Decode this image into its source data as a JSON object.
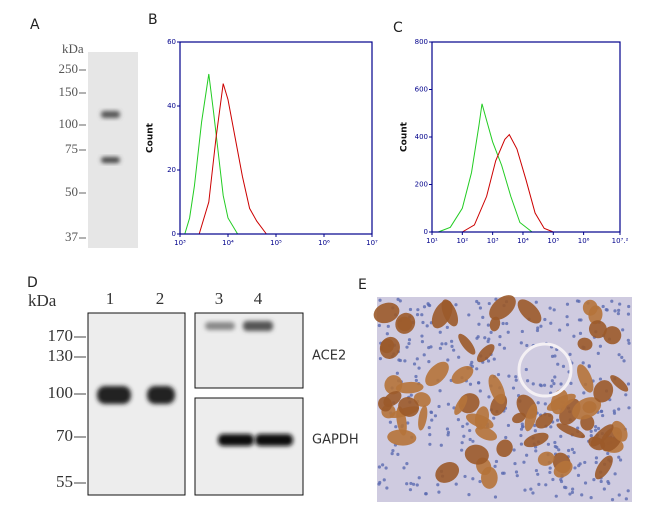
{
  "figure": {
    "a": {
      "label": "A",
      "unit": "kDa",
      "markers": [
        "250",
        "150",
        "100",
        "75",
        "50",
        "37"
      ]
    },
    "d": {
      "label": "D",
      "unit": "kDa",
      "lanes": [
        "1",
        "2",
        "3",
        "4"
      ],
      "markers": [
        "170",
        "130",
        "100",
        "70",
        "55"
      ],
      "blots": [
        "ACE2",
        "GAPDH"
      ]
    },
    "e": {
      "label": "E"
    }
  },
  "chart_data": [
    {
      "type": "line",
      "panel_label": "B",
      "y_label": "Count",
      "log_x": true,
      "xlim": [
        1000,
        10000000
      ],
      "xticks": [
        {
          "value": 1000,
          "label": "10³"
        },
        {
          "value": 10000,
          "label": "10⁴"
        },
        {
          "value": 100000,
          "label": "10⁵"
        },
        {
          "value": 1000000,
          "label": "10⁶"
        },
        {
          "value": 10000000,
          "label": "10⁷"
        }
      ],
      "ylim": [
        0,
        60
      ],
      "yticks": [
        0,
        20,
        40,
        60
      ],
      "series": [
        {
          "color": "#22cc22",
          "x": [
            1259,
            1585,
            1995,
            2818,
            3548,
            3981,
            5012,
            6310,
            7943,
            10000,
            15849
          ],
          "values": [
            0,
            5,
            15,
            35,
            45,
            50,
            38,
            25,
            12,
            5,
            0
          ]
        },
        {
          "color": "#cc0000",
          "x": [
            2512,
            3981,
            5623,
            7943,
            10000,
            14125,
            19953,
            28184,
            39811,
            63096
          ],
          "values": [
            0,
            10,
            30,
            47,
            42,
            30,
            18,
            8,
            4,
            0
          ]
        }
      ]
    },
    {
      "type": "line",
      "panel_label": "C",
      "y_label": "Count",
      "log_x": true,
      "xlim": [
        10,
        15848932
      ],
      "xticks": [
        {
          "value": 10,
          "label": "10¹"
        },
        {
          "value": 100,
          "label": "10²"
        },
        {
          "value": 1000,
          "label": "10³"
        },
        {
          "value": 10000,
          "label": "10⁴"
        },
        {
          "value": 100000,
          "label": "10⁵"
        },
        {
          "value": 1000000,
          "label": "10⁶"
        },
        {
          "value": 15848932,
          "label": "10⁷.²"
        }
      ],
      "ylim": [
        0,
        800
      ],
      "yticks": [
        0,
        200,
        400,
        600,
        800
      ],
      "series": [
        {
          "color": "#22cc22",
          "x": [
            16,
            40,
            100,
            200,
            355,
            447,
            631,
            1000,
            1995,
            3981,
            7943,
            19953
          ],
          "values": [
            0,
            20,
            100,
            250,
            450,
            540,
            470,
            380,
            280,
            150,
            40,
            0
          ]
        },
        {
          "color": "#cc0000",
          "x": [
            100,
            251,
            631,
            1259,
            2512,
            3548,
            6310,
            12589,
            25119,
            50119,
            100000
          ],
          "values": [
            0,
            30,
            150,
            300,
            390,
            410,
            350,
            220,
            80,
            15,
            0
          ]
        }
      ]
    }
  ]
}
